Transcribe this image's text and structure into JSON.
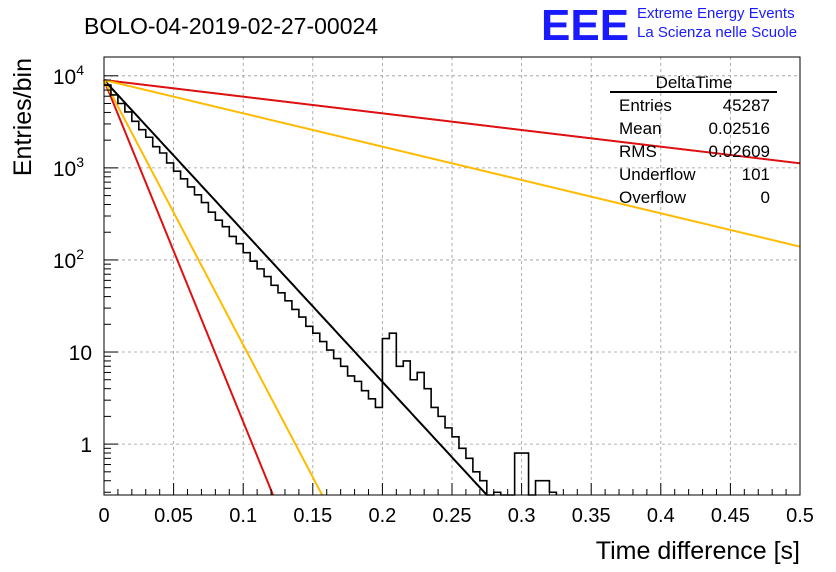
{
  "chart_data": {
    "type": "histogram",
    "title": "BOLO-04-2019-02-27-00024",
    "xlabel": "Time difference [s]",
    "ylabel": "Entries/bin",
    "xlim": [
      0,
      0.5
    ],
    "ylim": [
      0.28,
      16000
    ],
    "yscale": "log",
    "grid": true,
    "x_ticks": [
      "0",
      "0.05",
      "0.1",
      "0.15",
      "0.2",
      "0.25",
      "0.3",
      "0.35",
      "0.4",
      "0.45",
      "0.5"
    ],
    "y_ticks": [
      {
        "value": 1,
        "base": "1",
        "exp": ""
      },
      {
        "value": 10,
        "base": "10",
        "exp": ""
      },
      {
        "value": 100,
        "base": "10",
        "exp": "2"
      },
      {
        "value": 1000,
        "base": "10",
        "exp": "3"
      },
      {
        "value": 10000,
        "base": "10",
        "exp": "4"
      }
    ],
    "histogram": {
      "bin_width": 0.005,
      "bin_start": 0,
      "values": [
        7900,
        6200,
        5000,
        4050,
        3200,
        2600,
        2150,
        1700,
        1450,
        1130,
        920,
        760,
        620,
        510,
        420,
        330,
        270,
        230,
        180,
        150,
        120,
        97,
        80,
        66,
        53,
        44,
        36,
        29,
        24,
        19,
        16,
        13,
        10.5,
        8.5,
        7,
        5.5,
        4.8,
        3.8,
        3.1,
        2.5,
        14,
        16,
        7,
        8,
        5,
        6,
        4,
        2.5,
        2,
        1.5,
        1.2,
        0.9,
        0.7,
        0.5,
        0.4,
        0,
        0.3,
        0,
        0,
        0.8,
        0.8,
        0,
        0.4,
        0.4,
        0.3
      ]
    },
    "fits": [
      {
        "color": "#000000",
        "A": 9000,
        "tau": 0.0265
      },
      {
        "color": "#dd1111",
        "A": 9000,
        "tau": 0.0117
      },
      {
        "color": "#ffbb00",
        "A": 9000,
        "tau": 0.0151
      },
      {
        "color": "#dd1111",
        "A": 9000,
        "tau": 0.24
      },
      {
        "color": "#ffbb00",
        "A": 9000,
        "tau": 0.12
      }
    ]
  },
  "stats_box": {
    "title": "DeltaTime",
    "rows": [
      {
        "label": "Entries",
        "value": "45287"
      },
      {
        "label": "Mean",
        "value": "0.02516"
      },
      {
        "label": "RMS",
        "value": "0.02609"
      },
      {
        "label": "Underflow",
        "value": "101"
      },
      {
        "label": "Overflow",
        "value": "0"
      }
    ]
  },
  "logo": {
    "text": "EEE",
    "line1": "Extreme Energy Events",
    "line2": "La Scienza nelle Scuole",
    "color": "#1a1aff"
  }
}
